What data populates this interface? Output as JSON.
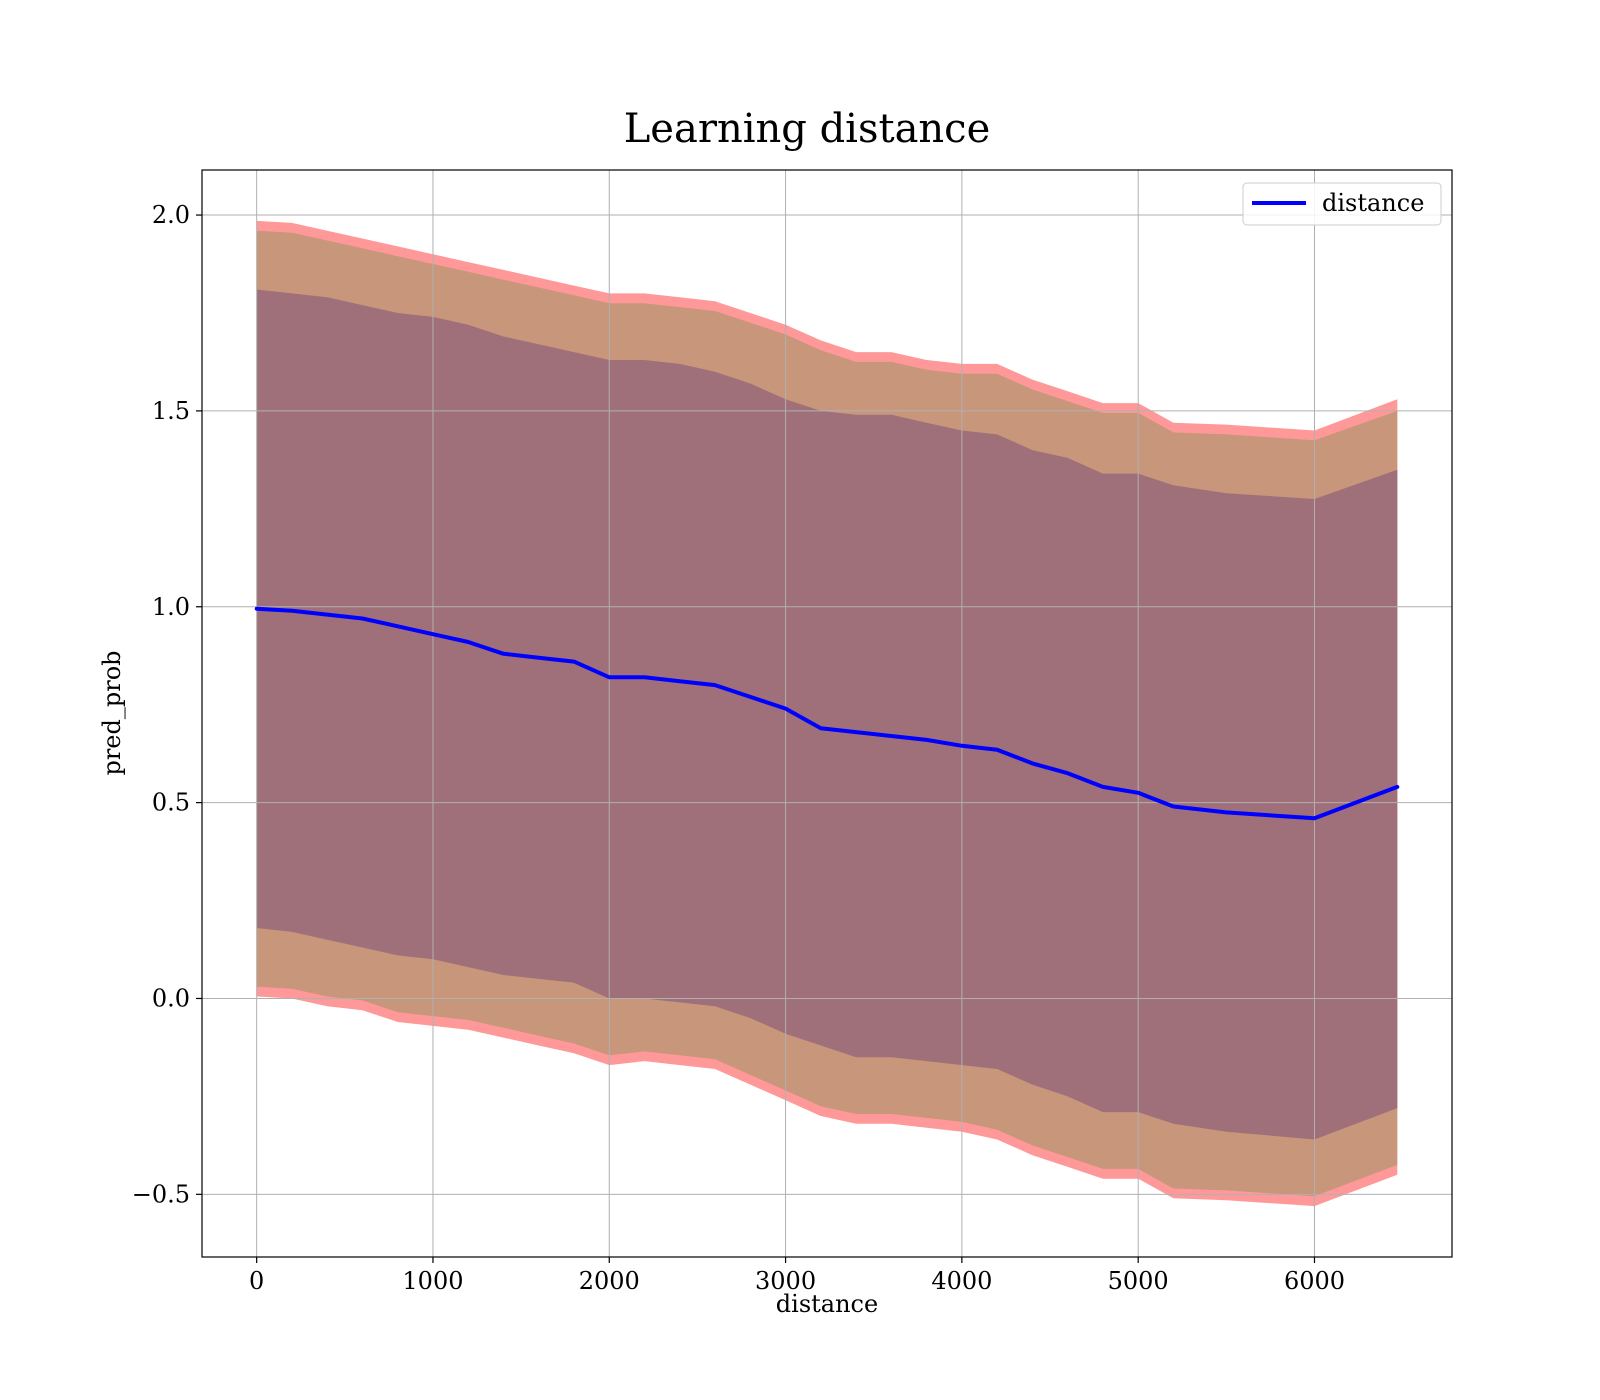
{
  "chart_data": {
    "type": "line",
    "title": "Learning distance",
    "xlabel": "distance",
    "ylabel": "pred_prob",
    "xlim": [
      -310,
      6780
    ],
    "ylim": [
      -0.66,
      2.115
    ],
    "xticks": [
      0,
      1000,
      2000,
      3000,
      4000,
      5000,
      6000
    ],
    "yticks": [
      -0.5,
      0.0,
      0.5,
      1.0,
      1.5,
      2.0
    ],
    "ytick_labels": [
      "−0.5",
      "0.0",
      "0.5",
      "1.0",
      "1.5",
      "2.0"
    ],
    "grid": true,
    "legend": {
      "placement": "top-right",
      "entries": [
        "distance"
      ]
    },
    "colors": {
      "line": "#0000ff",
      "band_outer": "#ff9999",
      "band_middle": "#c8967a",
      "band_inner": "#a0707a",
      "grid": "#b0b0b0"
    },
    "x": [
      0,
      200,
      400,
      600,
      800,
      1000,
      1200,
      1400,
      1600,
      1800,
      2000,
      2200,
      2400,
      2600,
      2800,
      3000,
      3200,
      3400,
      3600,
      3800,
      4000,
      4200,
      4400,
      4600,
      4800,
      5000,
      5200,
      5500,
      6000,
      6470
    ],
    "series": [
      {
        "name": "distance",
        "values": [
          0.995,
          0.99,
          0.98,
          0.97,
          0.95,
          0.93,
          0.91,
          0.88,
          0.87,
          0.86,
          0.82,
          0.82,
          0.81,
          0.8,
          0.77,
          0.74,
          0.69,
          0.68,
          0.67,
          0.66,
          0.645,
          0.635,
          0.6,
          0.575,
          0.54,
          0.525,
          0.49,
          0.475,
          0.46,
          0.54
        ]
      }
    ],
    "bands": [
      {
        "upper": [
          1.985,
          1.98,
          1.96,
          1.94,
          1.92,
          1.9,
          1.88,
          1.86,
          1.84,
          1.82,
          1.8,
          1.8,
          1.79,
          1.78,
          1.75,
          1.72,
          1.68,
          1.65,
          1.65,
          1.63,
          1.62,
          1.62,
          1.58,
          1.55,
          1.52,
          1.52,
          1.47,
          1.465,
          1.45,
          1.53
        ],
        "lower": [
          0.005,
          0.0,
          -0.02,
          -0.03,
          -0.06,
          -0.07,
          -0.08,
          -0.1,
          -0.12,
          -0.14,
          -0.17,
          -0.16,
          -0.17,
          -0.18,
          -0.22,
          -0.26,
          -0.3,
          -0.32,
          -0.32,
          -0.33,
          -0.34,
          -0.36,
          -0.4,
          -0.43,
          -0.46,
          -0.46,
          -0.51,
          -0.515,
          -0.53,
          -0.45
        ]
      },
      {
        "upper": [
          1.96,
          1.955,
          1.935,
          1.915,
          1.895,
          1.875,
          1.855,
          1.835,
          1.815,
          1.795,
          1.775,
          1.775,
          1.765,
          1.755,
          1.725,
          1.695,
          1.655,
          1.625,
          1.625,
          1.605,
          1.595,
          1.595,
          1.555,
          1.525,
          1.495,
          1.495,
          1.445,
          1.44,
          1.425,
          1.5
        ],
        "lower": [
          0.03,
          0.025,
          0.005,
          -0.005,
          -0.035,
          -0.045,
          -0.055,
          -0.075,
          -0.095,
          -0.115,
          -0.145,
          -0.135,
          -0.145,
          -0.155,
          -0.195,
          -0.235,
          -0.275,
          -0.295,
          -0.295,
          -0.305,
          -0.315,
          -0.335,
          -0.375,
          -0.405,
          -0.435,
          -0.435,
          -0.485,
          -0.49,
          -0.505,
          -0.425
        ]
      },
      {
        "upper": [
          1.81,
          1.8,
          1.79,
          1.77,
          1.75,
          1.74,
          1.72,
          1.69,
          1.67,
          1.65,
          1.63,
          1.63,
          1.62,
          1.6,
          1.57,
          1.53,
          1.5,
          1.49,
          1.49,
          1.47,
          1.45,
          1.44,
          1.4,
          1.38,
          1.34,
          1.34,
          1.31,
          1.29,
          1.275,
          1.35
        ],
        "lower": [
          0.18,
          0.17,
          0.15,
          0.13,
          0.11,
          0.1,
          0.08,
          0.06,
          0.05,
          0.04,
          0.0,
          0.0,
          -0.01,
          -0.02,
          -0.05,
          -0.09,
          -0.12,
          -0.15,
          -0.15,
          -0.16,
          -0.17,
          -0.18,
          -0.22,
          -0.25,
          -0.29,
          -0.29,
          -0.32,
          -0.34,
          -0.36,
          -0.28
        ]
      }
    ]
  }
}
